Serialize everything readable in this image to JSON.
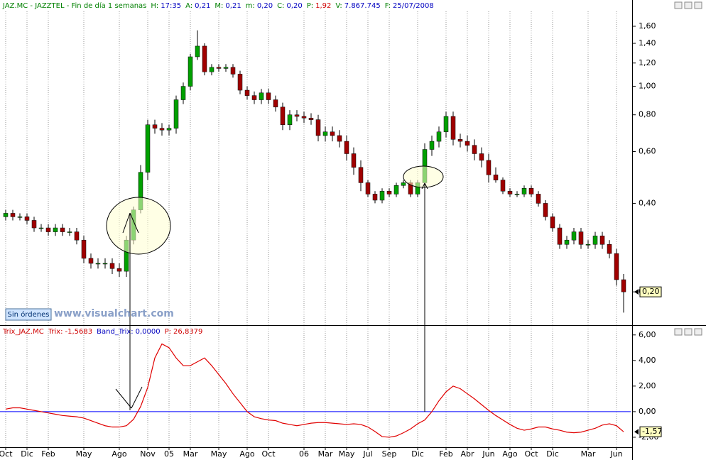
{
  "header": {
    "title": "JAZ.MC - JAZZTEL - Fin de día 1 semanas",
    "fields": [
      {
        "label": "H:",
        "value": "17:35"
      },
      {
        "label": "A:",
        "value": "0,21"
      },
      {
        "label": "M:",
        "value": "0,21"
      },
      {
        "label": "m:",
        "value": "0,20"
      },
      {
        "label": "C:",
        "value": "0,20"
      },
      {
        "label": "P:",
        "value": "1,92"
      },
      {
        "label": "V:",
        "value": "7.867.745"
      },
      {
        "label": "F:",
        "value": "25/07/2008"
      }
    ]
  },
  "orders_button": "Sin órdenes",
  "watermark": "www.visualchart.com",
  "chart_data": [
    {
      "type": "candlestick",
      "categories": [
        "Oct",
        null,
        null,
        "Dic",
        null,
        null,
        "Feb",
        null,
        null,
        null,
        null,
        "May",
        null,
        null,
        null,
        null,
        "Ago",
        null,
        null,
        null,
        "Nov",
        null,
        null,
        "05",
        null,
        null,
        "Mar",
        null,
        null,
        null,
        "May",
        null,
        null,
        null,
        "Ago",
        null,
        null,
        "Oct",
        null,
        null,
        null,
        null,
        "06",
        null,
        null,
        "Mar",
        null,
        null,
        "May",
        null,
        null,
        "Jul",
        null,
        null,
        "Sep",
        null,
        null,
        null,
        "Dic",
        null,
        null,
        null,
        "Feb",
        null,
        null,
        "Abr",
        null,
        null,
        "Jun",
        null,
        null,
        "Ago",
        null,
        null,
        "Oct",
        null,
        null,
        "Dic",
        null,
        null,
        null,
        null,
        "Mar",
        null,
        null,
        null,
        "Jun",
        null
      ],
      "open": [
        0.36,
        0.37,
        0.36,
        0.36,
        0.35,
        0.33,
        0.33,
        0.32,
        0.33,
        0.32,
        0.32,
        0.3,
        0.26,
        0.25,
        0.25,
        0.25,
        0.24,
        0.235,
        0.3,
        0.38,
        0.51,
        0.74,
        0.72,
        0.71,
        0.72,
        0.9,
        1.0,
        1.26,
        1.37,
        1.12,
        1.16,
        1.15,
        1.16,
        1.1,
        0.97,
        0.93,
        0.9,
        0.95,
        0.9,
        0.85,
        0.74,
        0.8,
        0.79,
        0.78,
        0.77,
        0.68,
        0.7,
        0.68,
        0.65,
        0.59,
        0.53,
        0.47,
        0.43,
        0.41,
        0.44,
        0.43,
        0.46,
        0.47,
        0.43,
        0.47,
        0.61,
        0.65,
        0.7,
        0.79,
        0.66,
        0.65,
        0.63,
        0.59,
        0.56,
        0.5,
        0.48,
        0.44,
        0.43,
        0.43,
        0.45,
        0.43,
        0.4,
        0.36,
        0.33,
        0.29,
        0.3,
        0.32,
        0.29,
        0.29,
        0.31,
        0.29,
        0.27,
        0.22
      ],
      "high": [
        0.38,
        0.38,
        0.37,
        0.37,
        0.36,
        0.34,
        0.34,
        0.34,
        0.34,
        0.33,
        0.33,
        0.31,
        0.27,
        0.26,
        0.26,
        0.26,
        0.25,
        0.31,
        0.39,
        0.54,
        0.77,
        0.77,
        0.75,
        0.74,
        0.93,
        1.03,
        1.29,
        1.55,
        1.4,
        1.19,
        1.19,
        1.19,
        1.19,
        1.13,
        1.0,
        0.96,
        0.98,
        0.98,
        0.93,
        0.88,
        0.83,
        0.83,
        0.82,
        0.81,
        0.8,
        0.73,
        0.73,
        0.71,
        0.68,
        0.62,
        0.56,
        0.48,
        0.44,
        0.45,
        0.45,
        0.47,
        0.48,
        0.48,
        0.48,
        0.64,
        0.68,
        0.73,
        0.82,
        0.82,
        0.69,
        0.68,
        0.66,
        0.62,
        0.59,
        0.53,
        0.49,
        0.45,
        0.44,
        0.46,
        0.46,
        0.44,
        0.41,
        0.37,
        0.34,
        0.31,
        0.33,
        0.33,
        0.3,
        0.32,
        0.32,
        0.3,
        0.28,
        0.23
      ],
      "low": [
        0.35,
        0.35,
        0.35,
        0.34,
        0.32,
        0.32,
        0.31,
        0.31,
        0.31,
        0.31,
        0.29,
        0.25,
        0.24,
        0.24,
        0.24,
        0.23,
        0.225,
        0.225,
        0.29,
        0.37,
        0.48,
        0.69,
        0.68,
        0.68,
        0.69,
        0.87,
        0.97,
        1.23,
        1.09,
        1.09,
        1.12,
        1.12,
        1.07,
        0.94,
        0.9,
        0.87,
        0.87,
        0.87,
        0.82,
        0.71,
        0.71,
        0.76,
        0.75,
        0.74,
        0.65,
        0.65,
        0.65,
        0.62,
        0.56,
        0.5,
        0.44,
        0.42,
        0.4,
        0.4,
        0.42,
        0.42,
        0.45,
        0.42,
        0.42,
        0.46,
        0.58,
        0.62,
        0.67,
        0.63,
        0.62,
        0.6,
        0.56,
        0.53,
        0.47,
        0.47,
        0.43,
        0.42,
        0.42,
        0.42,
        0.42,
        0.39,
        0.35,
        0.32,
        0.28,
        0.28,
        0.29,
        0.28,
        0.28,
        0.28,
        0.28,
        0.26,
        0.21,
        0.17
      ],
      "close": [
        0.37,
        0.36,
        0.36,
        0.35,
        0.33,
        0.33,
        0.32,
        0.33,
        0.32,
        0.32,
        0.3,
        0.26,
        0.25,
        0.25,
        0.25,
        0.24,
        0.235,
        0.3,
        0.38,
        0.51,
        0.74,
        0.72,
        0.71,
        0.72,
        0.9,
        1.0,
        1.26,
        1.37,
        1.12,
        1.16,
        1.15,
        1.16,
        1.1,
        0.97,
        0.93,
        0.9,
        0.95,
        0.9,
        0.85,
        0.74,
        0.8,
        0.79,
        0.78,
        0.77,
        0.68,
        0.7,
        0.68,
        0.65,
        0.59,
        0.53,
        0.47,
        0.43,
        0.41,
        0.44,
        0.43,
        0.46,
        0.47,
        0.43,
        0.47,
        0.61,
        0.65,
        0.7,
        0.79,
        0.66,
        0.65,
        0.63,
        0.59,
        0.56,
        0.5,
        0.48,
        0.44,
        0.43,
        0.43,
        0.45,
        0.43,
        0.4,
        0.36,
        0.33,
        0.29,
        0.3,
        0.32,
        0.29,
        0.29,
        0.31,
        0.29,
        0.27,
        0.22,
        0.2
      ],
      "up_color": "#00a000",
      "down_color": "#a00000",
      "wick_color": "#000000",
      "log_scale": true,
      "grid": true,
      "ylim": [
        0.155,
        1.88
      ],
      "yticks": [
        {
          "value": 0.2,
          "label": "0,20"
        },
        {
          "value": 0.4,
          "label": "0,40"
        },
        {
          "value": 0.6,
          "label": "0,60"
        },
        {
          "value": 0.8,
          "label": "0,80"
        },
        {
          "value": 1.0,
          "label": "1,00"
        },
        {
          "value": 1.2,
          "label": "1,20"
        },
        {
          "value": 1.4,
          "label": "1,40"
        },
        {
          "value": 1.6,
          "label": "1,60"
        }
      ],
      "last_value": {
        "value": 0.2,
        "label": "0,20"
      }
    },
    {
      "type": "line",
      "legend": {
        "title": "Trix_JAZ.MC",
        "items": [
          {
            "label": "Trix:",
            "value": "-1,5683"
          },
          {
            "label": "Band_Trix:",
            "value": "0,0000"
          },
          {
            "label": "P:",
            "value": "26,8379"
          }
        ]
      },
      "series": [
        {
          "name": "Trix",
          "color": "#e00000",
          "values": [
            0.2,
            0.3,
            0.3,
            0.2,
            0.1,
            0.0,
            -0.1,
            -0.2,
            -0.3,
            -0.35,
            -0.4,
            -0.5,
            -0.7,
            -0.9,
            -1.1,
            -1.2,
            -1.2,
            -1.1,
            -0.6,
            0.4,
            1.9,
            4.2,
            5.3,
            5.0,
            4.2,
            3.6,
            3.6,
            3.9,
            4.2,
            3.6,
            2.9,
            2.2,
            1.4,
            0.7,
            0.0,
            -0.4,
            -0.55,
            -0.65,
            -0.7,
            -0.9,
            -1.0,
            -1.1,
            -1.0,
            -0.9,
            -0.85,
            -0.85,
            -0.9,
            -0.95,
            -1.0,
            -0.95,
            -1.0,
            -1.2,
            -1.55,
            -1.95,
            -2.0,
            -1.9,
            -1.65,
            -1.35,
            -0.95,
            -0.65,
            0.0,
            0.85,
            1.55,
            2.0,
            1.8,
            1.4,
            1.0,
            0.55,
            0.1,
            -0.3,
            -0.65,
            -1.0,
            -1.3,
            -1.45,
            -1.35,
            -1.2,
            -1.2,
            -1.35,
            -1.45,
            -1.6,
            -1.65,
            -1.6,
            -1.45,
            -1.3,
            -1.05,
            -0.95,
            -1.1,
            -1.57
          ]
        }
      ],
      "band": {
        "name": "Band_Trix",
        "color": "#0000ff",
        "value": 0
      },
      "ylim": [
        -2.78,
        6.6
      ],
      "yticks": [
        {
          "value": -2,
          "label": "-2,00"
        },
        {
          "value": 0,
          "label": "0,00"
        },
        {
          "value": 2,
          "label": "2,00"
        },
        {
          "value": 4,
          "label": "4,00"
        },
        {
          "value": 6,
          "label": "6,00"
        }
      ],
      "last_value": {
        "value": -1.57,
        "label": "-1,57"
      }
    }
  ]
}
